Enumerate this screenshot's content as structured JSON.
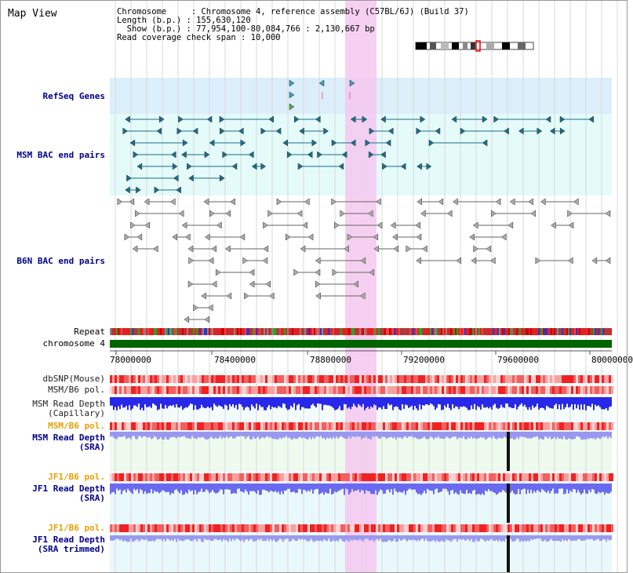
{
  "title": "Map View",
  "info": {
    "line1": "Chromosome     : Chromosome 4, reference assembly (C57BL/6J) (Build 37)",
    "line2": "Length (b.p.) : 155,630,120",
    "line3": "  Show (b.p.) : 77,954,100-80,084,766 : 2,130,667 bp",
    "line4": "Read coverage check span : 10,000"
  },
  "labels": {
    "refseq": "RefSeq Genes",
    "msm_bac": "MSM BAC end pairs",
    "b6n_bac": "B6N BAC end pairs",
    "repeat": "Repeat",
    "chromosome": "chromosome 4",
    "dbsnp": "dbSNP(Mouse)",
    "msm_b6_pol1": "MSM/B6 pol.",
    "msm_depth_cap_1": "MSM Read Depth",
    "msm_depth_cap_2": "(Capillary)",
    "msm_b6_pol2": "MSM/B6 pol.",
    "msm_depth_sra_1": "MSM Read Depth",
    "msm_depth_sra_2": "(SRA)",
    "jf1_b6_pol1": "JF1/B6 pol.",
    "jf1_depth_sra_1": "JF1 Read Depth",
    "jf1_depth_sra_2": "(SRA)",
    "jf1_b6_pol2": "JF1/B6 pol.",
    "jf1_depth_trim_1": "JF1 Read Depth",
    "jf1_depth_trim_2": "(SRA trimmed)"
  },
  "axis": {
    "ticks": [
      "78000000",
      "78400000",
      "78800000",
      "79200000",
      "79600000",
      "80000000"
    ]
  },
  "colors": {
    "refseq_bg": "#dbeefa",
    "msm_bg": "#e4fbfa",
    "b6n_bg": "#e4fbfa",
    "highlight": "#f5c8ee",
    "chromosome": "#006400",
    "msm_feature": "#1a6e8a",
    "b6n_feature": "#666666",
    "depth": "#3a3af0",
    "pol": "#ee3333"
  }
}
